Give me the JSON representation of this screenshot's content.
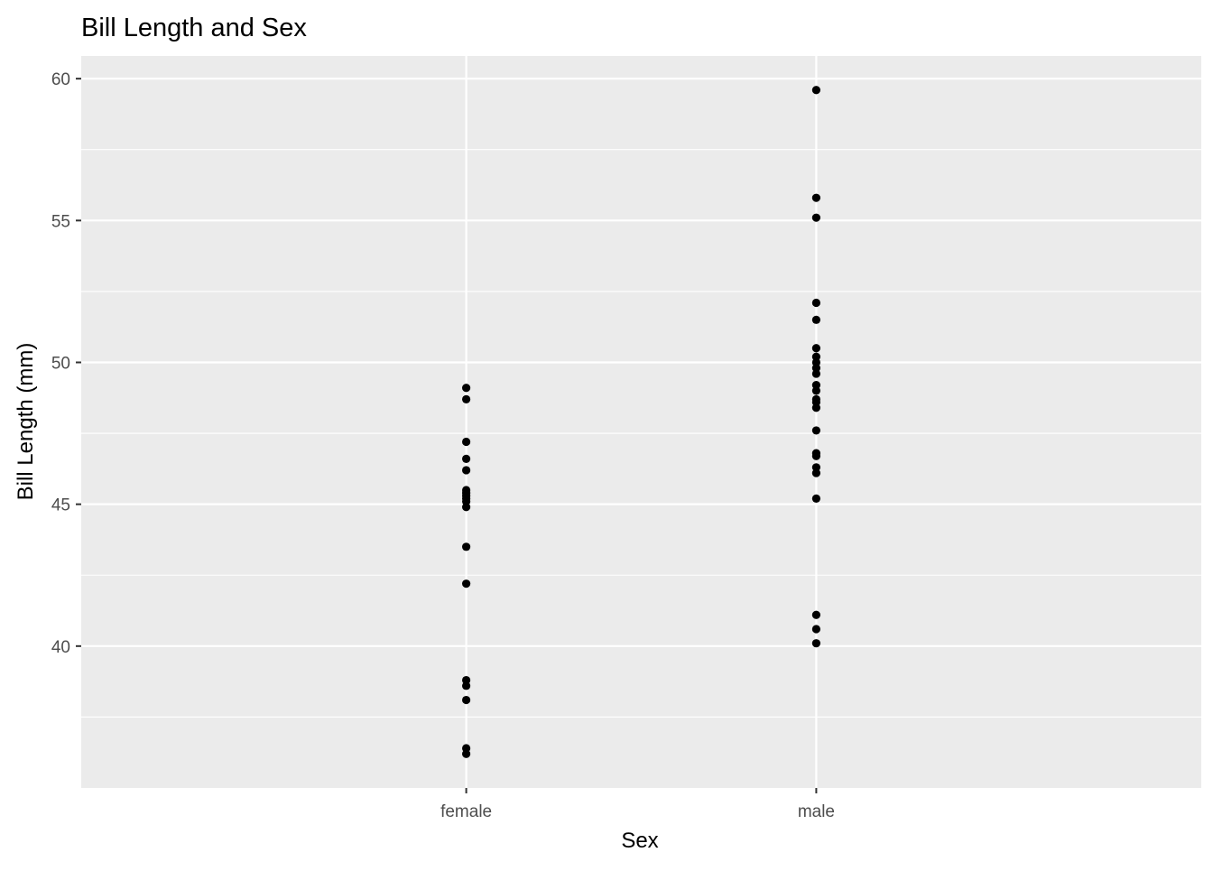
{
  "chart_data": {
    "type": "scatter",
    "title": "Bill Length and Sex",
    "xlabel": "Sex",
    "ylabel": "Bill Length (mm)",
    "categories": [
      "female",
      "male"
    ],
    "ylim": [
      35.0,
      60.8
    ],
    "y_ticks": [
      40,
      45,
      50,
      55,
      60
    ],
    "grid": true,
    "series": [
      {
        "category": "female",
        "values": [
          49.1,
          48.7,
          47.2,
          46.6,
          46.2,
          45.5,
          45.4,
          45.3,
          45.2,
          45.1,
          44.9,
          43.5,
          42.2,
          38.8,
          38.6,
          38.1,
          36.4,
          36.2
        ]
      },
      {
        "category": "male",
        "values": [
          59.6,
          55.8,
          55.1,
          52.1,
          51.5,
          50.5,
          50.2,
          50.0,
          49.8,
          49.6,
          49.2,
          49.0,
          48.7,
          48.6,
          48.4,
          47.6,
          46.8,
          46.7,
          46.3,
          46.1,
          45.2,
          41.1,
          40.6,
          40.1
        ]
      }
    ],
    "colors": {
      "panel": "#EBEBEB",
      "grid": "#FFFFFF",
      "point": "#000000",
      "tick_text": "#4D4D4D",
      "axis_title": "#000000"
    }
  }
}
